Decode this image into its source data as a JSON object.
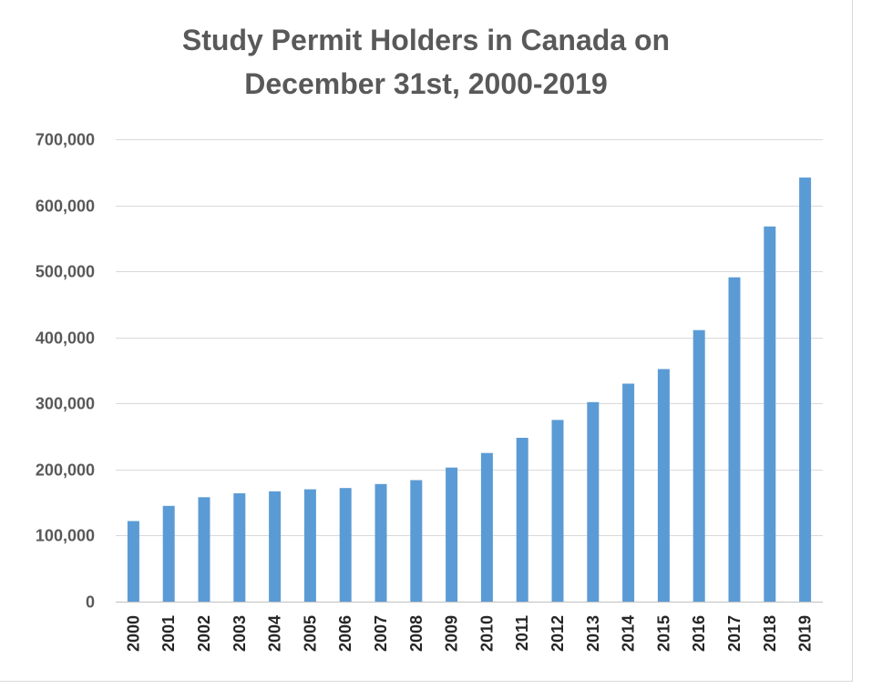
{
  "chart_data": {
    "type": "bar",
    "title": "Study Permit Holders in Canada on December 31st, 2000-2019",
    "title_lines": [
      "Study Permit Holders in Canada on",
      "December 31st, 2000-2019"
    ],
    "xlabel": "",
    "ylabel": "",
    "ylim": [
      0,
      700000
    ],
    "yticks": [
      0,
      100000,
      200000,
      300000,
      400000,
      500000,
      600000,
      700000
    ],
    "ytick_labels": [
      "0",
      "100,000",
      "200,000",
      "300,000",
      "400,000",
      "500,000",
      "600,000",
      "700,000"
    ],
    "grid": true,
    "categories": [
      "2000",
      "2001",
      "2002",
      "2003",
      "2004",
      "2005",
      "2006",
      "2007",
      "2008",
      "2009",
      "2010",
      "2011",
      "2012",
      "2013",
      "2014",
      "2015",
      "2016",
      "2017",
      "2018",
      "2019"
    ],
    "values": [
      122000,
      145000,
      158000,
      164000,
      167000,
      170000,
      172000,
      178000,
      184000,
      203000,
      225000,
      248000,
      275000,
      302000,
      330000,
      352000,
      411000,
      491000,
      568000,
      642000
    ],
    "bar_color": "#5b9bd5"
  }
}
